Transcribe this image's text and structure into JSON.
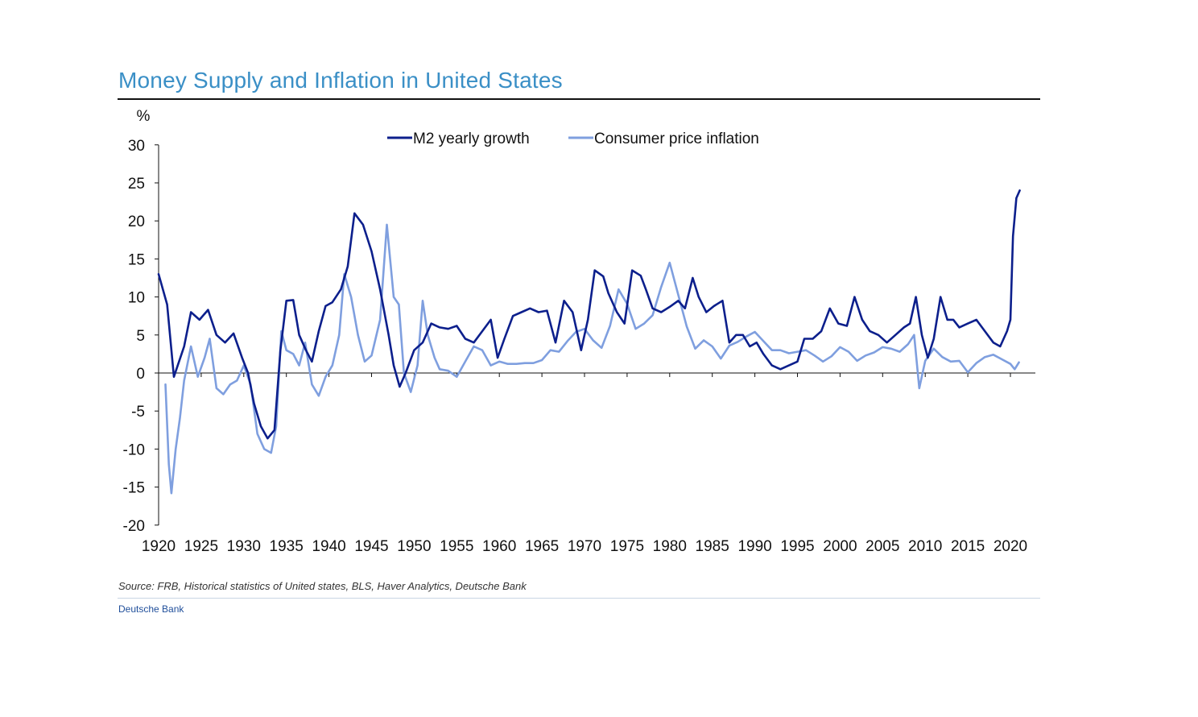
{
  "chart_data": {
    "type": "line",
    "title": "Money Supply and Inflation in United States",
    "ylabel": "%",
    "xlabel": "",
    "xlim": [
      1920,
      2021.5
    ],
    "ylim": [
      -20,
      30
    ],
    "x_ticks": [
      "1920",
      "1925",
      "1930",
      "1935",
      "1940",
      "1945",
      "1950",
      "1955",
      "1960",
      "1965",
      "1970",
      "1975",
      "1980",
      "1985",
      "1990",
      "1995",
      "2000",
      "2005",
      "2010",
      "2015",
      "2020"
    ],
    "y_ticks": [
      "30",
      "25",
      "20",
      "15",
      "10",
      "5",
      "0",
      "-5",
      "-10",
      "-15",
      "-20"
    ],
    "legend_position": "top-center",
    "series": [
      {
        "name": "M2 yearly growth",
        "color": "#0c1f8c",
        "points": [
          [
            1920,
            13
          ],
          [
            1921,
            9
          ],
          [
            1921.8,
            -0.5
          ],
          [
            1923,
            3.5
          ],
          [
            1923.8,
            8
          ],
          [
            1924.8,
            7
          ],
          [
            1925.8,
            8.3
          ],
          [
            1926.8,
            5
          ],
          [
            1927.8,
            4
          ],
          [
            1928.8,
            5.2
          ],
          [
            1929.8,
            2
          ],
          [
            1930.5,
            0
          ],
          [
            1931.2,
            -4
          ],
          [
            1932,
            -7
          ],
          [
            1932.8,
            -8.6
          ],
          [
            1933.6,
            -7.5
          ],
          [
            1934.3,
            3
          ],
          [
            1935,
            9.5
          ],
          [
            1935.8,
            9.6
          ],
          [
            1936.5,
            5
          ],
          [
            1937.3,
            3
          ],
          [
            1938,
            1.5
          ],
          [
            1938.8,
            5.5
          ],
          [
            1939.6,
            8.8
          ],
          [
            1940.4,
            9.3
          ],
          [
            1941.4,
            11
          ],
          [
            1942.2,
            14
          ],
          [
            1943,
            21
          ],
          [
            1944,
            19.5
          ],
          [
            1945,
            16
          ],
          [
            1946,
            11
          ],
          [
            1947,
            5
          ],
          [
            1947.6,
            1
          ],
          [
            1948.3,
            -1.8
          ],
          [
            1949,
            0
          ],
          [
            1950,
            3
          ],
          [
            1951,
            4
          ],
          [
            1952,
            6.5
          ],
          [
            1953,
            6
          ],
          [
            1954,
            5.8
          ],
          [
            1955,
            6.2
          ],
          [
            1956,
            4.5
          ],
          [
            1957,
            4
          ],
          [
            1958,
            5.5
          ],
          [
            1959,
            7
          ],
          [
            1959.8,
            2
          ],
          [
            1960.6,
            4.5
          ],
          [
            1961.6,
            7.5
          ],
          [
            1962.6,
            8
          ],
          [
            1963.6,
            8.5
          ],
          [
            1964.6,
            8
          ],
          [
            1965.6,
            8.2
          ],
          [
            1966.6,
            4
          ],
          [
            1967.6,
            9.5
          ],
          [
            1968.6,
            8
          ],
          [
            1969.6,
            3
          ],
          [
            1970.4,
            7
          ],
          [
            1971.2,
            13.5
          ],
          [
            1972.2,
            12.7
          ],
          [
            1972.8,
            10.5
          ],
          [
            1973.8,
            8
          ],
          [
            1974.7,
            6.5
          ],
          [
            1975.6,
            13.5
          ],
          [
            1976.6,
            12.8
          ],
          [
            1977.2,
            11
          ],
          [
            1978,
            8.5
          ],
          [
            1979,
            8
          ],
          [
            1980,
            8.7
          ],
          [
            1981,
            9.5
          ],
          [
            1981.8,
            8.5
          ],
          [
            1982.7,
            12.5
          ],
          [
            1983.4,
            10
          ],
          [
            1984.3,
            8
          ],
          [
            1985.2,
            8.8
          ],
          [
            1986.2,
            9.5
          ],
          [
            1987,
            4
          ],
          [
            1987.8,
            5
          ],
          [
            1988.6,
            5
          ],
          [
            1989.4,
            3.5
          ],
          [
            1990.2,
            4
          ],
          [
            1991,
            2.5
          ],
          [
            1992,
            1
          ],
          [
            1993,
            0.5
          ],
          [
            1994,
            1
          ],
          [
            1995,
            1.5
          ],
          [
            1995.8,
            4.5
          ],
          [
            1996.8,
            4.5
          ],
          [
            1997.8,
            5.5
          ],
          [
            1998.8,
            8.5
          ],
          [
            1999.8,
            6.5
          ],
          [
            2000.8,
            6.2
          ],
          [
            2001.7,
            10
          ],
          [
            2002.6,
            7
          ],
          [
            2003.5,
            5.5
          ],
          [
            2004.5,
            5
          ],
          [
            2005.5,
            4
          ],
          [
            2006.5,
            5
          ],
          [
            2007.5,
            6
          ],
          [
            2008.2,
            6.5
          ],
          [
            2008.9,
            10
          ],
          [
            2009.6,
            5
          ],
          [
            2010.3,
            2
          ],
          [
            2011,
            4.5
          ],
          [
            2011.8,
            10
          ],
          [
            2012.6,
            7
          ],
          [
            2013.3,
            7
          ],
          [
            2014,
            6
          ],
          [
            2015,
            6.5
          ],
          [
            2016,
            7
          ],
          [
            2017,
            5.5
          ],
          [
            2018,
            4
          ],
          [
            2018.8,
            3.5
          ],
          [
            2019.6,
            5.5
          ],
          [
            2020,
            7
          ],
          [
            2020.3,
            18
          ],
          [
            2020.7,
            23
          ],
          [
            2021.1,
            24
          ]
        ]
      },
      {
        "name": "Consumer price inflation",
        "color": "#7f9fdf",
        "points": [
          [
            1920.8,
            -1.5
          ],
          [
            1921.2,
            -12
          ],
          [
            1921.5,
            -15.8
          ],
          [
            1922,
            -10
          ],
          [
            1922.5,
            -6
          ],
          [
            1923,
            -1
          ],
          [
            1923.8,
            3.5
          ],
          [
            1924.6,
            -0.5
          ],
          [
            1925.4,
            2
          ],
          [
            1926,
            4.5
          ],
          [
            1926.8,
            -2
          ],
          [
            1927.6,
            -2.8
          ],
          [
            1928.4,
            -1.5
          ],
          [
            1929.2,
            -1
          ],
          [
            1930,
            1
          ],
          [
            1930.8,
            -1.5
          ],
          [
            1931.6,
            -8
          ],
          [
            1932.4,
            -10
          ],
          [
            1933.2,
            -10.5
          ],
          [
            1933.8,
            -7
          ],
          [
            1934.4,
            5.5
          ],
          [
            1935,
            3
          ],
          [
            1935.8,
            2.5
          ],
          [
            1936.5,
            1
          ],
          [
            1937.2,
            4
          ],
          [
            1938,
            -1.5
          ],
          [
            1938.8,
            -3
          ],
          [
            1939.6,
            -0.5
          ],
          [
            1940.4,
            1
          ],
          [
            1941.2,
            5
          ],
          [
            1941.8,
            13
          ],
          [
            1942.6,
            10
          ],
          [
            1943.4,
            5
          ],
          [
            1944.2,
            1.5
          ],
          [
            1945,
            2.3
          ],
          [
            1946,
            7
          ],
          [
            1946.8,
            19.5
          ],
          [
            1947.6,
            10
          ],
          [
            1948.2,
            9
          ],
          [
            1948.8,
            0
          ],
          [
            1949.6,
            -2.5
          ],
          [
            1950.4,
            1
          ],
          [
            1951,
            9.5
          ],
          [
            1951.6,
            5
          ],
          [
            1952.4,
            2
          ],
          [
            1953,
            0.5
          ],
          [
            1954,
            0.3
          ],
          [
            1955,
            -0.5
          ],
          [
            1956,
            1.5
          ],
          [
            1957,
            3.5
          ],
          [
            1958,
            3
          ],
          [
            1959,
            1
          ],
          [
            1960,
            1.5
          ],
          [
            1961,
            1.2
          ],
          [
            1962,
            1.2
          ],
          [
            1963,
            1.3
          ],
          [
            1964,
            1.3
          ],
          [
            1965,
            1.7
          ],
          [
            1966,
            3
          ],
          [
            1967,
            2.8
          ],
          [
            1968,
            4.2
          ],
          [
            1969,
            5.4
          ],
          [
            1970,
            5.8
          ],
          [
            1971,
            4.3
          ],
          [
            1972,
            3.3
          ],
          [
            1973,
            6.2
          ],
          [
            1974,
            11
          ],
          [
            1975,
            9.1
          ],
          [
            1976,
            5.8
          ],
          [
            1977,
            6.5
          ],
          [
            1978,
            7.6
          ],
          [
            1979,
            11.3
          ],
          [
            1980,
            14.5
          ],
          [
            1981,
            10.3
          ],
          [
            1982,
            6.1
          ],
          [
            1983,
            3.2
          ],
          [
            1984,
            4.3
          ],
          [
            1985,
            3.5
          ],
          [
            1986,
            1.9
          ],
          [
            1987,
            3.6
          ],
          [
            1988,
            4.1
          ],
          [
            1989,
            4.8
          ],
          [
            1990,
            5.4
          ],
          [
            1991,
            4.2
          ],
          [
            1992,
            3
          ],
          [
            1993,
            3
          ],
          [
            1994,
            2.6
          ],
          [
            1995,
            2.8
          ],
          [
            1996,
            3
          ],
          [
            1997,
            2.3
          ],
          [
            1998,
            1.5
          ],
          [
            1999,
            2.2
          ],
          [
            2000,
            3.4
          ],
          [
            2001,
            2.8
          ],
          [
            2002,
            1.6
          ],
          [
            2003,
            2.3
          ],
          [
            2004,
            2.7
          ],
          [
            2005,
            3.4
          ],
          [
            2006,
            3.2
          ],
          [
            2007,
            2.8
          ],
          [
            2008,
            3.8
          ],
          [
            2008.7,
            5
          ],
          [
            2009.3,
            -2
          ],
          [
            2010,
            1.6
          ],
          [
            2011,
            3.2
          ],
          [
            2012,
            2.1
          ],
          [
            2013,
            1.5
          ],
          [
            2014,
            1.6
          ],
          [
            2015,
            0.1
          ],
          [
            2016,
            1.3
          ],
          [
            2017,
            2.1
          ],
          [
            2018,
            2.4
          ],
          [
            2019,
            1.8
          ],
          [
            2020,
            1.2
          ],
          [
            2020.5,
            0.5
          ],
          [
            2021,
            1.4
          ]
        ]
      }
    ]
  },
  "footer": {
    "source": "Source: FRB, Historical statistics of United states,  BLS, Haver Analytics, Deutsche Bank",
    "brand": "Deutsche Bank"
  }
}
